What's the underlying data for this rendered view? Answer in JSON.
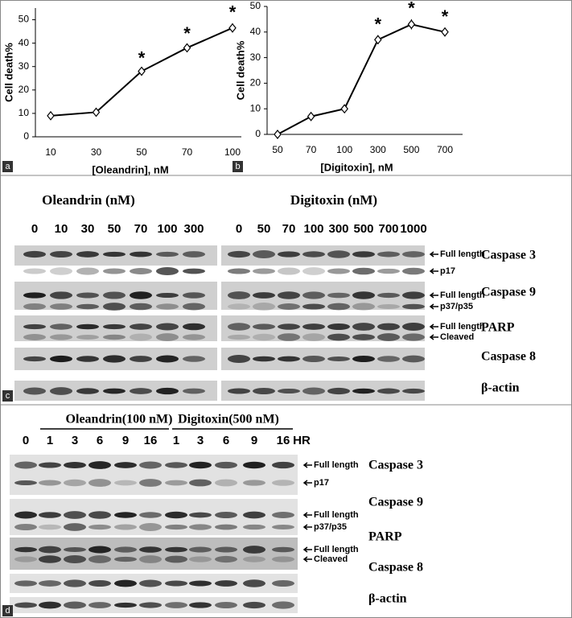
{
  "chart_data": [
    {
      "type": "line",
      "panel_label": "a",
      "x_label": "[Oleandrin], nM",
      "y_label": "Cell death%",
      "categories": [
        "10",
        "30",
        "50",
        "70",
        "100"
      ],
      "values": [
        9,
        10.5,
        28,
        38,
        46.5
      ],
      "errors": [
        0.5,
        0.6,
        1,
        1.5,
        2
      ],
      "markers": [
        null,
        null,
        "*",
        "*",
        "*"
      ],
      "color": "#000000",
      "ylim": [
        0,
        55
      ],
      "yticks": [
        0,
        10,
        20,
        30,
        40,
        50
      ]
    },
    {
      "type": "line",
      "panel_label": "b",
      "x_label": "[Digitoxin], nM",
      "y_label": "Cell death%",
      "categories": [
        "50",
        "70",
        "100",
        "300",
        "500",
        "700"
      ],
      "values": [
        0,
        7,
        10,
        37,
        43,
        40
      ],
      "errors": [
        0.3,
        0.5,
        0.6,
        1.8,
        2,
        1.8
      ],
      "markers": [
        null,
        null,
        null,
        "*",
        "*",
        "*"
      ],
      "color": "#000000",
      "ylim": [
        0,
        50
      ],
      "yticks": [
        0,
        10,
        20,
        30,
        40,
        50
      ]
    }
  ],
  "panel_c": {
    "panel_label": "c",
    "groups": [
      {
        "title": "Oleandrin (nM)",
        "lanes": [
          "0",
          "10",
          "30",
          "50",
          "70",
          "100",
          "300"
        ]
      },
      {
        "title": "Digitoxin (nM)",
        "lanes": [
          "0",
          "50",
          "70",
          "100",
          "300",
          "500",
          "700",
          "1000"
        ]
      }
    ],
    "rows": [
      {
        "protein": "Caspase 3",
        "bands": [
          "Full length",
          "p17"
        ]
      },
      {
        "protein": "Caspase 9",
        "bands": [
          "Full length",
          "p37/p35"
        ]
      },
      {
        "protein": "PARP",
        "bands": [
          "Full length",
          "Cleaved"
        ]
      },
      {
        "protein": "Caspase 8"
      },
      {
        "protein": "β-actin"
      }
    ]
  },
  "panel_d": {
    "panel_label": "d",
    "control_lane": "0",
    "unit": "HR",
    "groups": [
      {
        "title": "Oleandrin(100 nM)",
        "lanes": [
          "1",
          "3",
          "6",
          "9",
          "16"
        ]
      },
      {
        "title": "Digitoxin(500 nM)",
        "lanes": [
          "1",
          "3",
          "6",
          "9",
          "16"
        ]
      }
    ],
    "rows": [
      {
        "protein": "Caspase 3",
        "bands": [
          "Full length",
          "p17"
        ]
      },
      {
        "protein": "Caspase 9",
        "bands": [
          "Full length",
          "p37/p35"
        ]
      },
      {
        "protein": "PARP",
        "bands": [
          "Full length",
          "Cleaved"
        ]
      },
      {
        "protein": "Caspase 8"
      },
      {
        "protein": "β-actin"
      }
    ]
  }
}
